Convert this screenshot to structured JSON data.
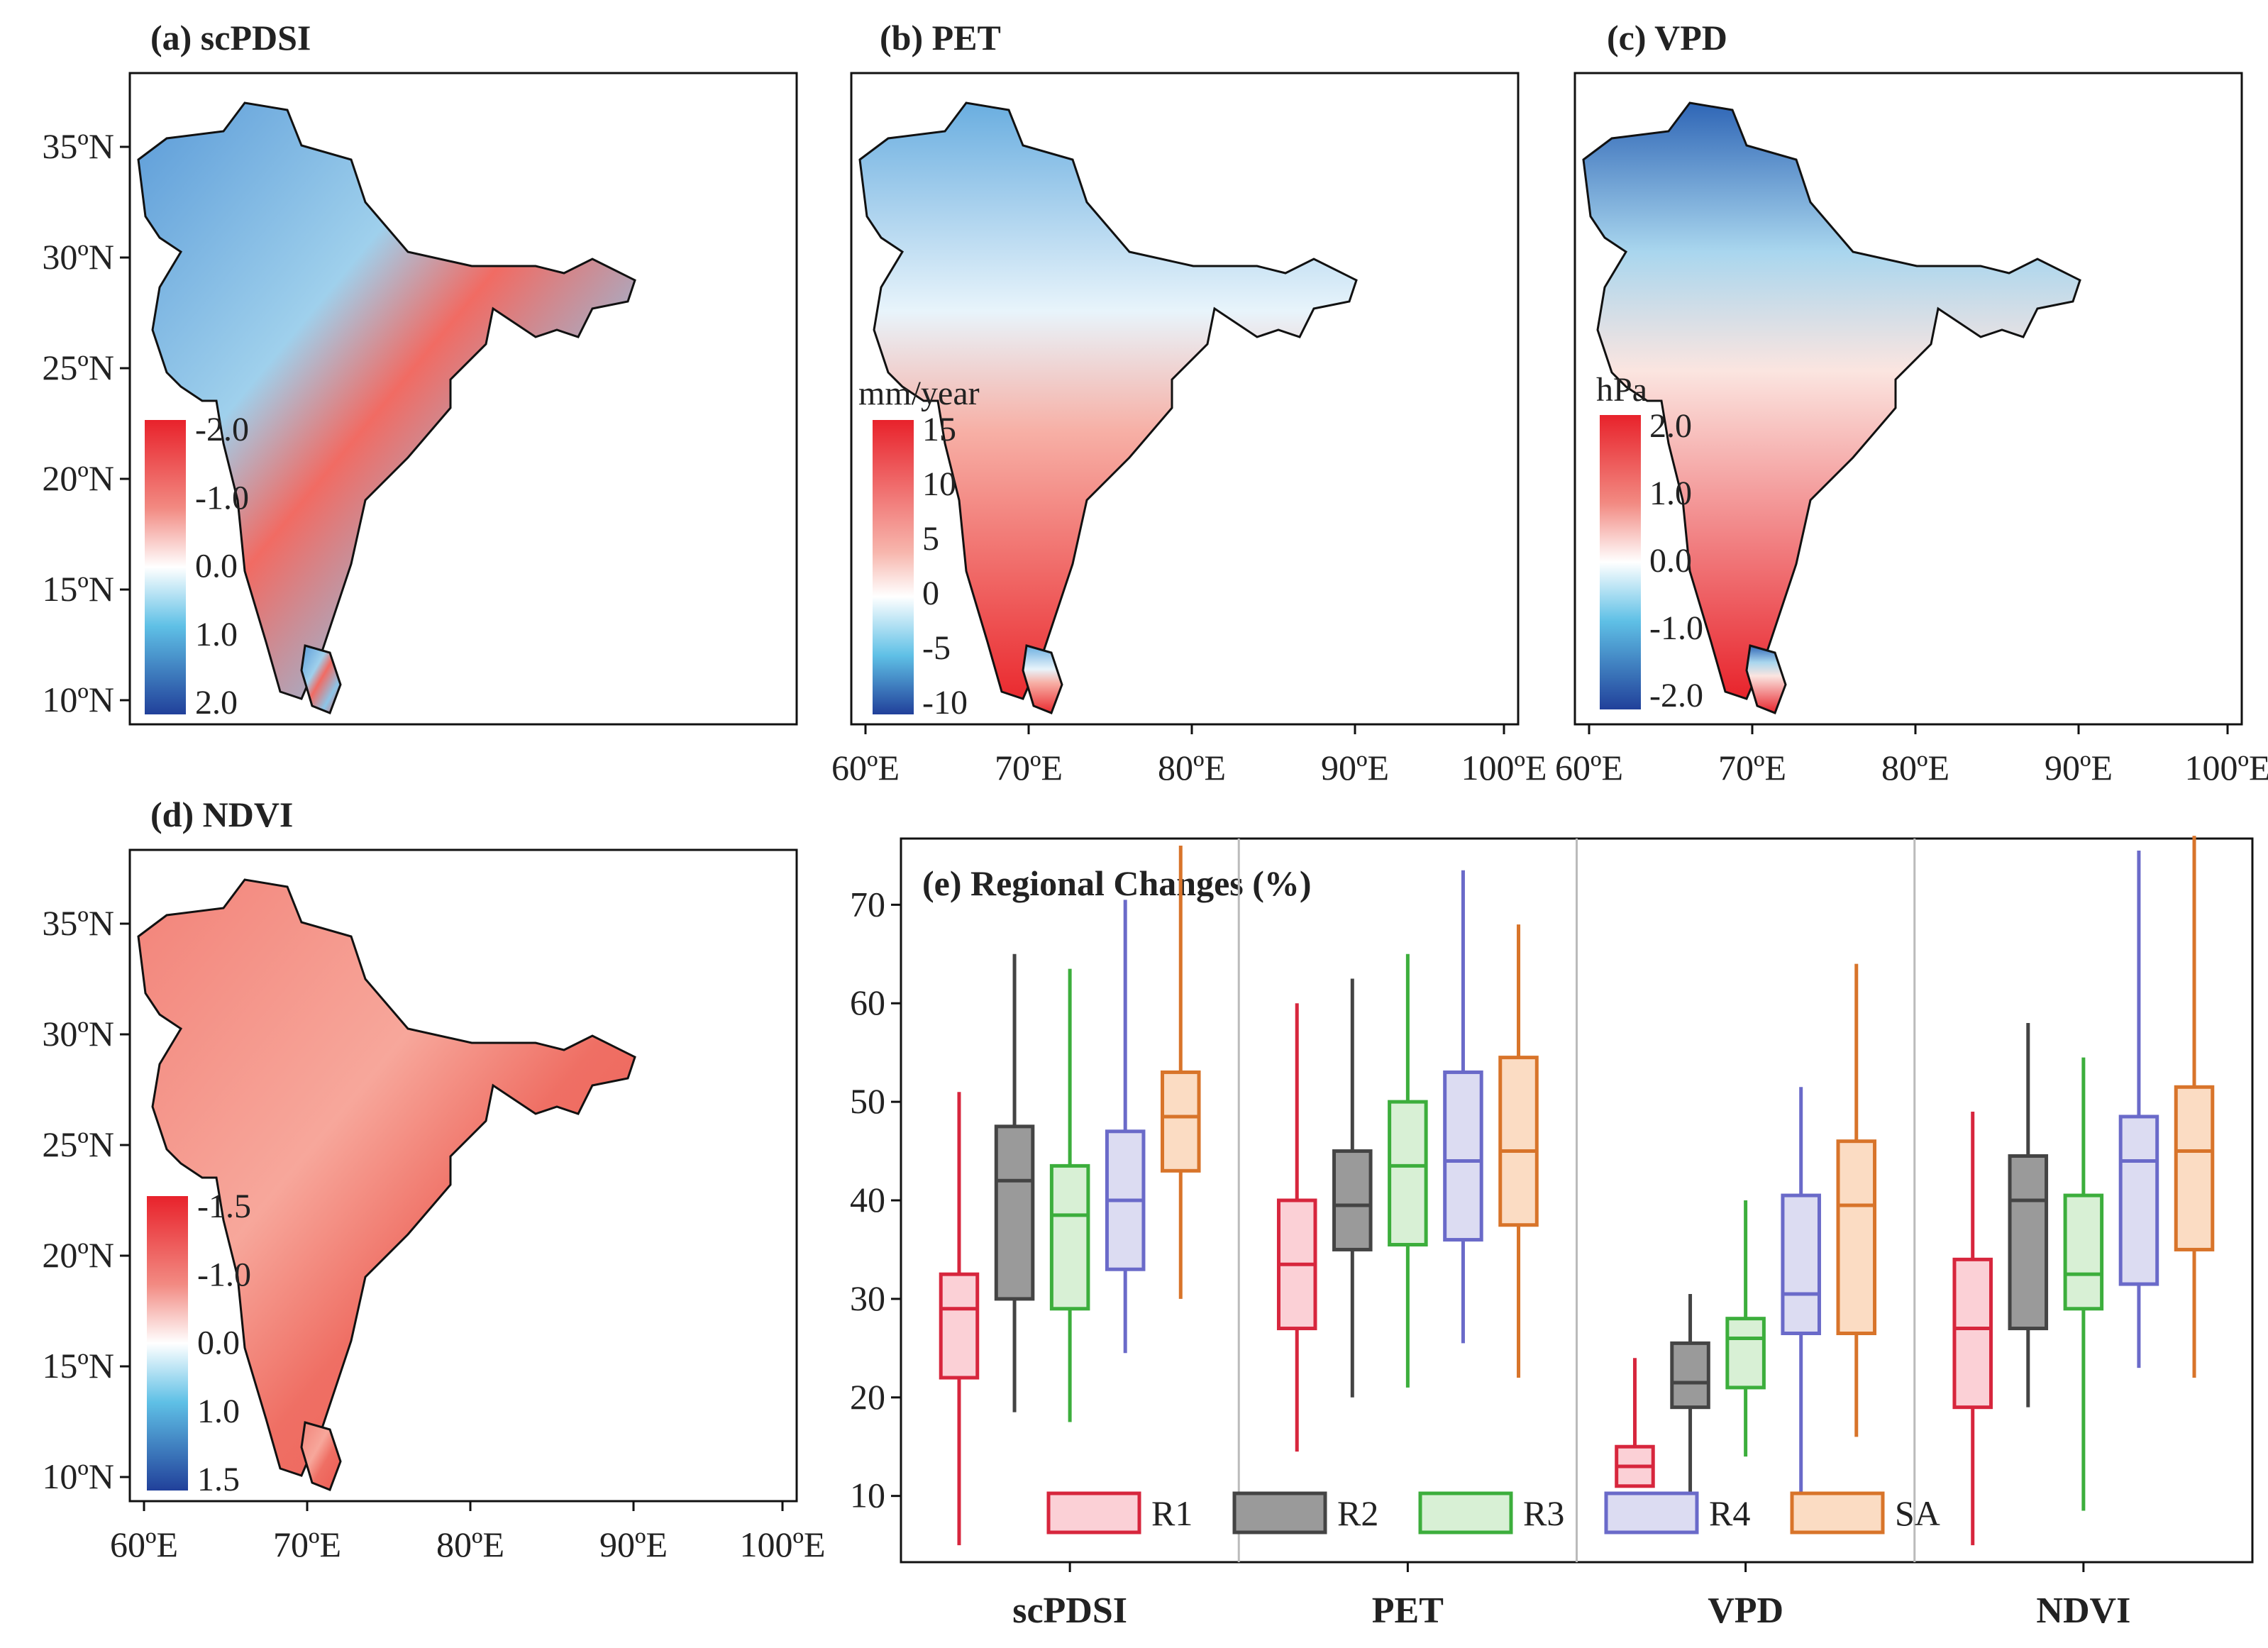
{
  "colors": {
    "red": "#d7263d",
    "gray": "#444444",
    "green": "#3cae3c",
    "blue": "#6a6ac9",
    "orange": "#d8742a",
    "map_red": "#ef3b3b",
    "map_blue": "#2b6cc4"
  },
  "maps": [
    {
      "key": "a",
      "title": "(a) scPDSI",
      "unit": "",
      "cb_ticks": [
        "-2.0",
        "-1.0",
        "0.0",
        "1.0",
        "2.0"
      ],
      "show_lat": true,
      "show_lon": false
    },
    {
      "key": "b",
      "title": "(b) PET",
      "unit": "mm/year",
      "cb_ticks": [
        "15",
        "10",
        "5",
        "0",
        "-5",
        "-10"
      ],
      "show_lat": false,
      "show_lon": true
    },
    {
      "key": "c",
      "title": "(c) VPD",
      "unit": "hPa",
      "cb_ticks": [
        "2.0",
        "1.0",
        "0.0",
        "-1.0",
        "-2.0"
      ],
      "show_lat": false,
      "show_lon": true
    },
    {
      "key": "d",
      "title": "(d) NDVI",
      "unit": "",
      "cb_ticks": [
        "-1.5",
        "-1.0",
        "0.0",
        "1.0",
        "1.5"
      ],
      "show_lat": true,
      "show_lon": true
    }
  ],
  "lat_ticks": [
    "35ºN",
    "30ºN",
    "25ºN",
    "20ºN",
    "15ºN",
    "10ºN"
  ],
  "lon_ticks": [
    "60ºE",
    "70ºE",
    "80ºE",
    "90ºE",
    "100ºE"
  ],
  "chart_data": {
    "type": "box",
    "title": "(e) Regional Changes (%)",
    "groups": [
      "scPDSI",
      "PET",
      "VPD",
      "NDVI"
    ],
    "ylim": [
      4,
      76
    ],
    "yticks": [
      10,
      20,
      30,
      40,
      50,
      60,
      70
    ],
    "series": [
      {
        "name": "R1",
        "color": "#d7263d",
        "fill": "#fbd0d6",
        "boxes": [
          {
            "min": 5,
            "q1": 22,
            "median": 29,
            "q3": 32.5,
            "max": 51
          },
          {
            "min": 14.5,
            "q1": 27,
            "median": 33.5,
            "q3": 40,
            "max": 60
          },
          {
            "min": 11,
            "q1": 11,
            "median": 13,
            "q3": 15,
            "max": 24
          },
          {
            "min": 5,
            "q1": 19,
            "median": 27,
            "q3": 34,
            "max": 49
          }
        ]
      },
      {
        "name": "R2",
        "color": "#444444",
        "fill": "#9a9a9a",
        "boxes": [
          {
            "min": 18.5,
            "q1": 30,
            "median": 42,
            "q3": 47.5,
            "max": 65
          },
          {
            "min": 20,
            "q1": 35,
            "median": 39.5,
            "q3": 45,
            "max": 62.5
          },
          {
            "min": 10,
            "q1": 19,
            "median": 21.5,
            "q3": 25.5,
            "max": 30.5
          },
          {
            "min": 19,
            "q1": 27,
            "median": 40,
            "q3": 44.5,
            "max": 58
          }
        ]
      },
      {
        "name": "R3",
        "color": "#3cae3c",
        "fill": "#d8f0d5",
        "boxes": [
          {
            "min": 17.5,
            "q1": 29,
            "median": 38.5,
            "q3": 43.5,
            "max": 63.5
          },
          {
            "min": 21,
            "q1": 35.5,
            "median": 43.5,
            "q3": 50,
            "max": 65
          },
          {
            "min": 14,
            "q1": 21,
            "median": 26,
            "q3": 28,
            "max": 40
          },
          {
            "min": 8.5,
            "q1": 29,
            "median": 32.5,
            "q3": 40.5,
            "max": 54.5
          }
        ]
      },
      {
        "name": "R4",
        "color": "#6a6ac9",
        "fill": "#dcdcf2",
        "boxes": [
          {
            "min": 24.5,
            "q1": 33,
            "median": 40,
            "q3": 47,
            "max": 70.5
          },
          {
            "min": 25.5,
            "q1": 36,
            "median": 44,
            "q3": 53,
            "max": 73.5
          },
          {
            "min": 7.5,
            "q1": 26.5,
            "median": 30.5,
            "q3": 40.5,
            "max": 51.5
          },
          {
            "min": 23,
            "q1": 31.5,
            "median": 44,
            "q3": 48.5,
            "max": 75.5
          }
        ]
      },
      {
        "name": "SA",
        "color": "#d8742a",
        "fill": "#fbdcc3",
        "boxes": [
          {
            "min": 30,
            "q1": 43,
            "median": 48.5,
            "q3": 53,
            "max": 76
          },
          {
            "min": 22,
            "q1": 37.5,
            "median": 45,
            "q3": 54.5,
            "max": 68
          },
          {
            "min": 16,
            "q1": 26.5,
            "median": 39.5,
            "q3": 46,
            "max": 64
          },
          {
            "min": 22,
            "q1": 35,
            "median": 45,
            "q3": 51.5,
            "max": 77
          }
        ]
      }
    ]
  }
}
